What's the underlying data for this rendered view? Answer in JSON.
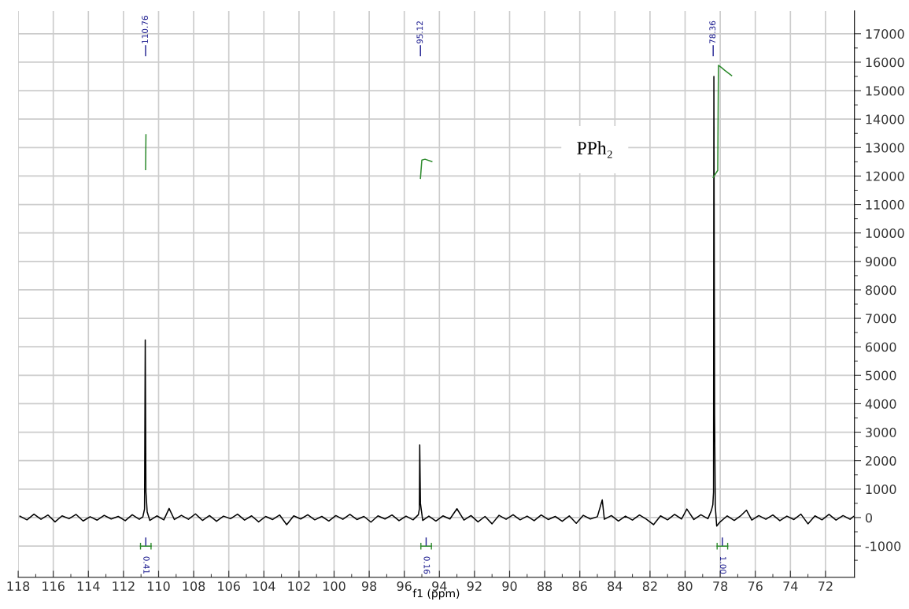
{
  "chart_data": {
    "type": "line",
    "xlabel": "f1 (ppm)",
    "xlim": [
      118.0,
      70.35
    ],
    "xticks": [
      118,
      116,
      114,
      112,
      110,
      108,
      106,
      104,
      102,
      100,
      98,
      96,
      94,
      92,
      90,
      88,
      86,
      84,
      82,
      80,
      78,
      76,
      74,
      72
    ],
    "ylim": [
      -2100,
      17800
    ],
    "yticks": [
      -1000,
      0,
      1000,
      2000,
      3000,
      4000,
      5000,
      6000,
      7000,
      8000,
      9000,
      10000,
      11000,
      12000,
      13000,
      14000,
      15000,
      16000,
      17000
    ],
    "grid": true,
    "series": [
      {
        "color": "#000000",
        "x": [
          117.9,
          117.5,
          117.1,
          116.7,
          116.3,
          115.9,
          115.5,
          115.1,
          114.7,
          114.3,
          113.9,
          113.5,
          113.1,
          112.7,
          112.3,
          111.9,
          111.5,
          111.1,
          110.9,
          110.8,
          110.76,
          110.72,
          110.65,
          110.5,
          110.1,
          109.7,
          109.4,
          109.1,
          108.7,
          108.3,
          107.9,
          107.5,
          107.1,
          106.7,
          106.3,
          105.9,
          105.5,
          105.1,
          104.7,
          104.3,
          103.9,
          103.5,
          103.1,
          102.7,
          102.3,
          101.9,
          101.5,
          101.1,
          100.7,
          100.3,
          99.9,
          99.5,
          99.1,
          98.7,
          98.3,
          97.9,
          97.5,
          97.1,
          96.7,
          96.3,
          95.9,
          95.5,
          95.2,
          95.14,
          95.12,
          95.08,
          94.95,
          94.6,
          94.2,
          93.8,
          93.4,
          93.0,
          92.6,
          92.2,
          91.8,
          91.4,
          91.0,
          90.6,
          90.2,
          89.8,
          89.4,
          89.0,
          88.6,
          88.2,
          87.8,
          87.4,
          87.0,
          86.6,
          86.2,
          85.8,
          85.4,
          85.0,
          84.72,
          84.6,
          84.2,
          83.8,
          83.4,
          83.0,
          82.6,
          82.2,
          81.8,
          81.4,
          81.0,
          80.6,
          80.2,
          79.9,
          79.5,
          79.1,
          78.7,
          78.5,
          78.42,
          78.38,
          78.36,
          78.32,
          78.28,
          78.2,
          78.0,
          77.6,
          77.2,
          76.8,
          76.5,
          76.2,
          75.8,
          75.4,
          75.0,
          74.6,
          74.2,
          73.8,
          73.4,
          73.0,
          72.6,
          72.2,
          71.8,
          71.4,
          71.0,
          70.6,
          70.4
        ],
        "values": [
          50,
          -80,
          120,
          -60,
          90,
          -150,
          60,
          -40,
          110,
          -120,
          30,
          -90,
          80,
          -50,
          40,
          -110,
          100,
          -60,
          20,
          300,
          6240,
          900,
          200,
          -100,
          60,
          -80,
          320,
          -70,
          80,
          -60,
          130,
          -100,
          70,
          -130,
          50,
          -40,
          120,
          -90,
          60,
          -150,
          40,
          -70,
          90,
          -250,
          60,
          -50,
          100,
          -80,
          40,
          -120,
          70,
          -60,
          110,
          -70,
          40,
          -160,
          60,
          -50,
          90,
          -110,
          50,
          -80,
          100,
          300,
          2550,
          500,
          -100,
          50,
          -120,
          60,
          -50,
          310,
          -90,
          70,
          -150,
          40,
          -220,
          80,
          -60,
          100,
          -80,
          50,
          -110,
          90,
          -70,
          40,
          -130,
          60,
          -200,
          80,
          -50,
          30,
          620,
          -60,
          70,
          -120,
          50,
          -90,
          90,
          -60,
          -250,
          60,
          -80,
          110,
          -50,
          300,
          -70,
          100,
          -40,
          250,
          450,
          900,
          15500,
          3600,
          400,
          -300,
          -150,
          60,
          -100,
          80,
          260,
          -90,
          70,
          -60,
          90,
          -110,
          50,
          -70,
          120,
          -220,
          60,
          -80,
          110,
          -90,
          70,
          -60,
          40
        ]
      },
      {
        "color": "#2e8b2e",
        "x": [
          110.74,
          110.72
        ],
        "values": [
          12230,
          13450
        ]
      },
      {
        "color": "#2e8b2e",
        "x": [
          95.08,
          95.0,
          94.82,
          94.43
        ],
        "values": [
          11920,
          12560,
          12590,
          12510
        ]
      },
      {
        "color": "#2e8b2e",
        "x": [
          78.4,
          78.14,
          78.1,
          77.92,
          77.75,
          77.35
        ],
        "values": [
          11950,
          12200,
          15890,
          15810,
          15720,
          15530
        ]
      }
    ],
    "annotations": [
      "110.76",
      "95.12",
      "78.36",
      "0.41",
      "0.16",
      "1.00",
      "PPh₂"
    ]
  }
}
